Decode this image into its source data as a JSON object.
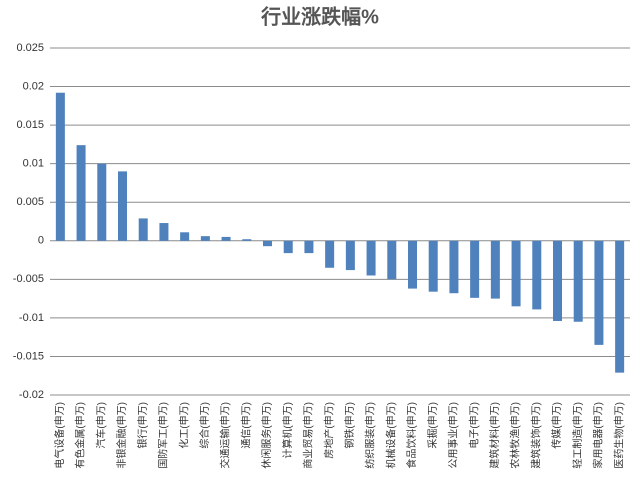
{
  "chart_data": {
    "type": "bar",
    "title": "行业涨跌幅%",
    "categories": [
      "电气设备(申万)",
      "有色金属(申万)",
      "汽车(申万)",
      "非银金融(申万)",
      "银行(申万)",
      "国防军工(申万)",
      "化工(申万)",
      "综合(申万)",
      "交通运输(申万)",
      "通信(申万)",
      "休闲服务(申万)",
      "计算机(申万)",
      "商业贸易(申万)",
      "房地产(申万)",
      "钢铁(申万)",
      "纺织服装(申万)",
      "机械设备(申万)",
      "食品饮料(申万)",
      "采掘(申万)",
      "公用事业(申万)",
      "电子(申万)",
      "建筑材料(申万)",
      "农林牧渔(申万)",
      "建筑装饰(申万)",
      "传媒(申万)",
      "轻工制造(申万)",
      "家用电器(申万)",
      "医药生物(申万)"
    ],
    "values": [
      0.0192,
      0.0124,
      0.01,
      0.009,
      0.0029,
      0.0023,
      0.0011,
      0.0006,
      0.0005,
      0.0002,
      -0.0007,
      -0.0016,
      -0.0016,
      -0.0035,
      -0.0038,
      -0.0045,
      -0.005,
      -0.0062,
      -0.0066,
      -0.0068,
      -0.0074,
      -0.0075,
      -0.0085,
      -0.0089,
      -0.0104,
      -0.0105,
      -0.0135,
      -0.0171
    ],
    "color": "#4f81bd",
    "ylim": [
      -0.02,
      0.025
    ],
    "yticks": [
      -0.02,
      -0.015,
      -0.01,
      -0.005,
      0,
      0.005,
      0.01,
      0.015,
      0.02,
      0.025
    ],
    "grid": true
  }
}
